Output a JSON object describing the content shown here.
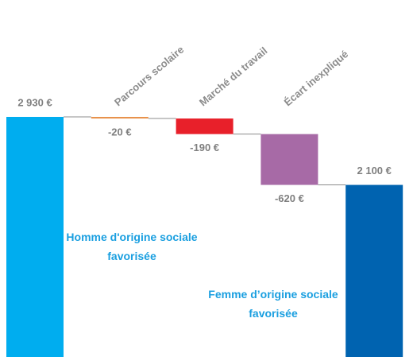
{
  "chart_data": {
    "type": "waterfall",
    "categories": [
      "Homme d'origine sociale favorisée",
      "Parcours scolaire",
      "Marché du travail",
      "Écart inexpliqué",
      "Femme d’origine sociale favorisée"
    ],
    "measure": [
      "absolute",
      "relative",
      "relative",
      "relative",
      "absolute"
    ],
    "values": [
      2930,
      -20,
      -190,
      -620,
      2100
    ],
    "value_labels": [
      "2 930 €",
      "-20 €",
      "-190 €",
      "-620 €",
      "2 100 €"
    ],
    "colors": [
      "#00adef",
      "#e8924c",
      "#e8202a",
      "#a76aa6",
      "#0063b0"
    ]
  }
}
